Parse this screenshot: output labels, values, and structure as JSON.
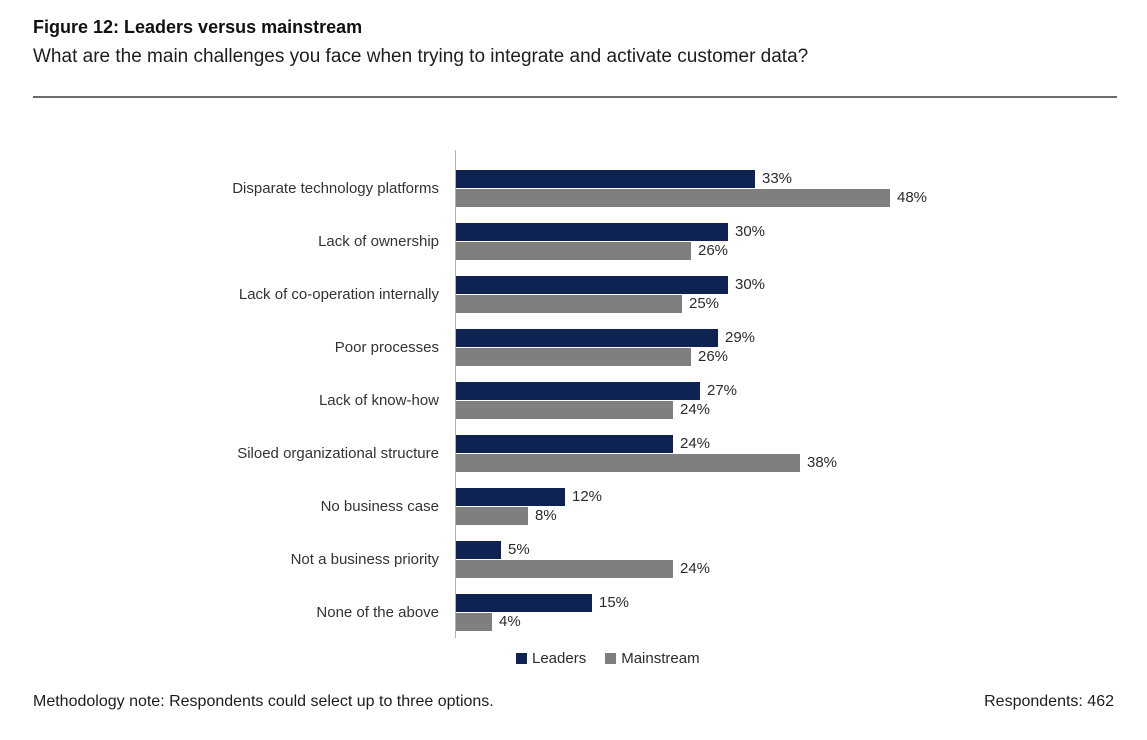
{
  "header": {
    "title": "Figure 12: Leaders versus mainstream",
    "subtitle": "What are the main challenges you face when trying to integrate and activate customer data?"
  },
  "chart_data": {
    "type": "bar",
    "orientation": "horizontal",
    "title": "Figure 12: Leaders versus mainstream",
    "categories": [
      "Disparate technology platforms",
      "Lack of ownership",
      "Lack of co-operation internally",
      "Poor processes",
      "Lack of know-how",
      "Siloed organizational structure",
      "No business case",
      "Not a business priority",
      "None of the above"
    ],
    "series": [
      {
        "name": "Leaders",
        "color": "#0f2352",
        "values": [
          33,
          30,
          30,
          29,
          27,
          24,
          12,
          5,
          15
        ]
      },
      {
        "name": "Mainstream",
        "color": "#7f7f7f",
        "values": [
          48,
          26,
          25,
          26,
          24,
          38,
          8,
          24,
          4
        ]
      }
    ],
    "value_suffix": "%",
    "xlim": [
      0,
      50
    ],
    "grid": false,
    "legend_position": "bottom-center"
  },
  "legend": {
    "items": [
      {
        "label": "Leaders",
        "color": "#0f2352"
      },
      {
        "label": "Mainstream",
        "color": "#7f7f7f"
      }
    ]
  },
  "footer": {
    "methodology_note": "Methodology note: Respondents could select up to three options.",
    "respondents": "Respondents: 462"
  }
}
